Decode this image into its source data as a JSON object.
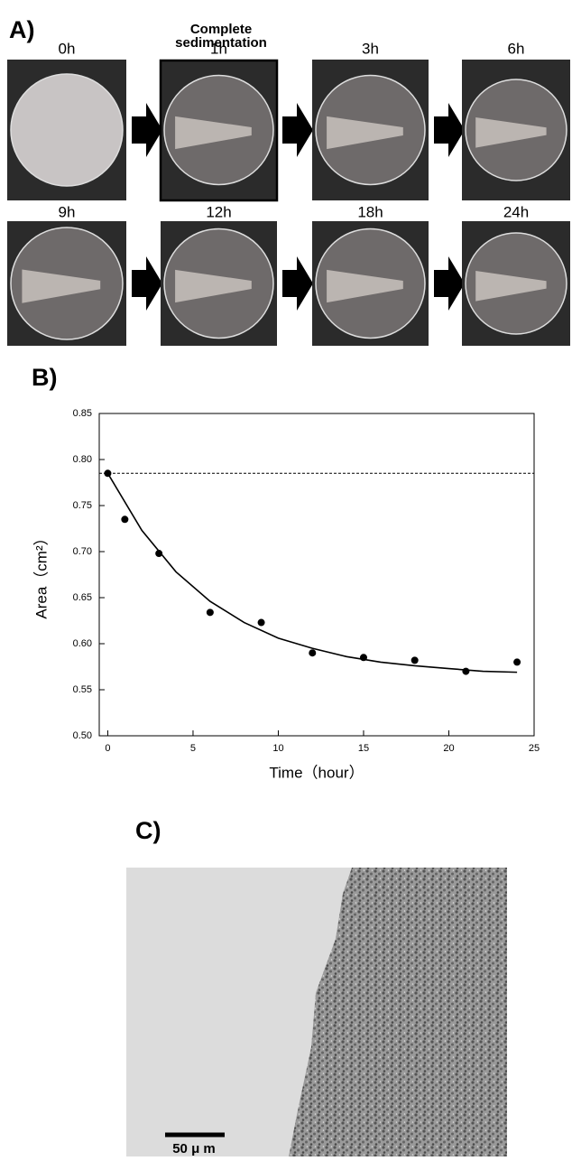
{
  "panel_a": {
    "label": "A)",
    "note": [
      "Complete",
      "sedimentation"
    ],
    "frames": [
      "0h",
      "1h",
      "3h",
      "6h",
      "9h",
      "12h",
      "18h",
      "24h"
    ]
  },
  "chart_data": {
    "type": "scatter",
    "panel_label": "B)",
    "xlabel": "Time（hour）",
    "ylabel": "Area（cm²）",
    "x": [
      0,
      1,
      3,
      6,
      9,
      12,
      15,
      18,
      21,
      24
    ],
    "values": [
      0.785,
      0.735,
      0.698,
      0.634,
      0.623,
      0.59,
      0.585,
      0.582,
      0.57,
      0.58
    ],
    "fit_x": [
      0,
      2,
      4,
      6,
      8,
      10,
      12,
      14,
      16,
      18,
      20,
      22,
      24
    ],
    "fit_values": [
      0.785,
      0.723,
      0.678,
      0.646,
      0.623,
      0.606,
      0.595,
      0.586,
      0.58,
      0.576,
      0.573,
      0.57,
      0.569
    ],
    "reference_line": 0.785,
    "color": "#000000",
    "xlim": [
      -0.5,
      25
    ],
    "xticks": [
      0,
      5,
      10,
      15,
      20,
      25
    ],
    "ylim": [
      0.5,
      0.85
    ],
    "yticks": [
      {
        "value": 0.5,
        "label": "0.50"
      },
      {
        "value": 0.55,
        "label": "0.55"
      },
      {
        "value": 0.6,
        "label": "0.60"
      },
      {
        "value": 0.65,
        "label": "0.65"
      },
      {
        "value": 0.7,
        "label": "0.70"
      },
      {
        "value": 0.75,
        "label": "0.75"
      },
      {
        "value": 0.8,
        "label": "0.80"
      },
      {
        "value": 0.85,
        "label": "0.85"
      }
    ]
  },
  "panel_c": {
    "label": "C)",
    "scale_bar": "50 μ m"
  }
}
